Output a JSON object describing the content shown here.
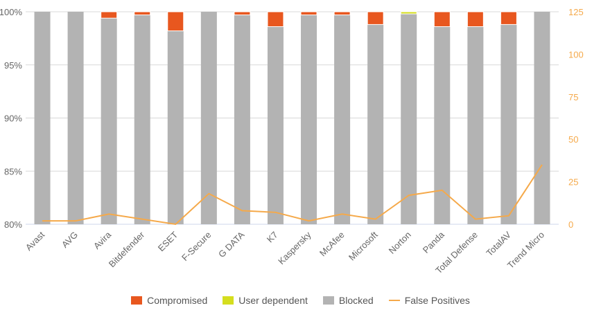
{
  "chart_data": {
    "type": "bar",
    "stacked": true,
    "categories": [
      "Avast",
      "AVG",
      "Avira",
      "Bitdefender",
      "ESET",
      "F-Secure",
      "G DATA",
      "K7",
      "Kaspersky",
      "McAfee",
      "Microsoft",
      "Norton",
      "Panda",
      "Total Defense",
      "TotalAV",
      "Trend Micro"
    ],
    "series": [
      {
        "name": "Compromised",
        "color": "#e8571f",
        "values": [
          0,
          0,
          0.6,
          0.3,
          1.8,
          0,
          0.3,
          1.4,
          0.3,
          0.3,
          1.2,
          0,
          1.4,
          1.4,
          1.2,
          0
        ]
      },
      {
        "name": "User dependent",
        "color": "#d5de1e",
        "values": [
          0,
          0,
          0,
          0,
          0,
          0,
          0,
          0,
          0,
          0,
          0,
          0.2,
          0,
          0,
          0,
          0
        ]
      },
      {
        "name": "Blocked",
        "color": "#b3b3b3",
        "values": [
          100,
          100,
          99.4,
          99.7,
          98.2,
          100,
          99.7,
          98.6,
          99.7,
          99.7,
          98.8,
          99.8,
          98.6,
          98.6,
          98.8,
          100
        ]
      },
      {
        "name": "False Positives",
        "color": "#f5a94a",
        "type": "line",
        "axis": "right",
        "values": [
          2,
          2,
          6,
          3,
          0,
          18,
          8,
          7,
          2,
          6,
          3,
          17,
          20,
          3,
          5,
          35
        ]
      }
    ],
    "ylim": [
      80,
      100
    ],
    "yticks": [
      "80%",
      "85%",
      "90%",
      "95%",
      "100%"
    ],
    "y2lim": [
      0,
      125
    ],
    "y2ticks": [
      "0",
      "25",
      "50",
      "75",
      "100",
      "125"
    ],
    "legend_position": "bottom"
  }
}
